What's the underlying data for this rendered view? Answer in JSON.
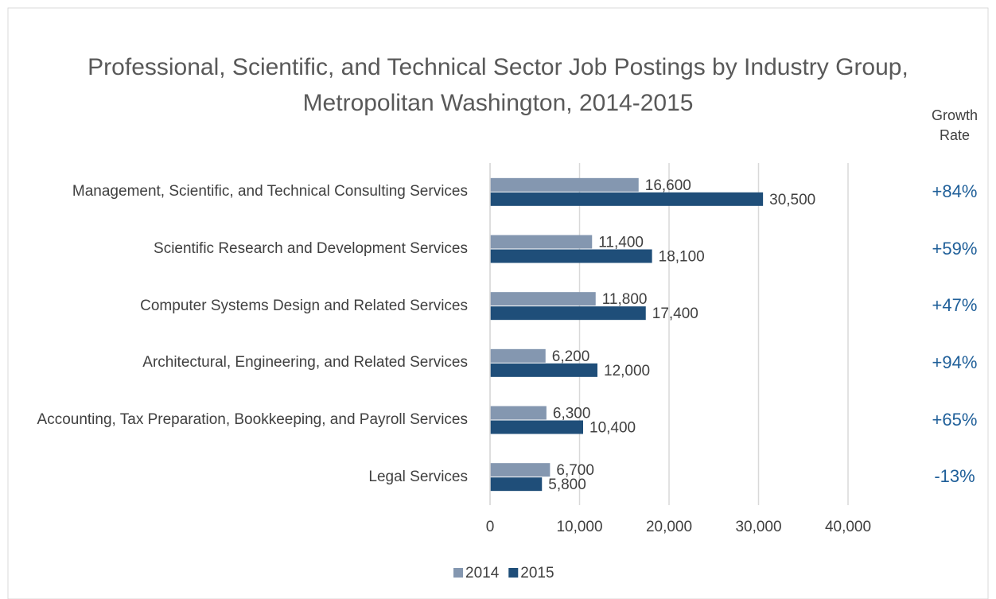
{
  "chart_data": {
    "type": "hbar",
    "title": "Professional, Scientific, and Technical Sector Job Postings by Industry Group, Metropolitan Washington, 2014-2015",
    "categories": [
      "Management, Scientific, and Technical Consulting Services",
      "Scientific Research and Development Services",
      "Computer Systems Design and Related Services",
      "Architectural, Engineering, and Related Services",
      "Accounting, Tax Preparation, Bookkeeping, and Payroll Services",
      "Legal Services"
    ],
    "series": [
      {
        "name": "2014",
        "color": "#8497b0",
        "values": [
          16600,
          11400,
          11800,
          6200,
          6300,
          6700
        ],
        "value_labels": [
          "16,600",
          "11,400",
          "11,800",
          "6,200",
          "6,300",
          "6,700"
        ]
      },
      {
        "name": "2015",
        "color": "#1f4e79",
        "values": [
          30500,
          18100,
          17400,
          12000,
          10400,
          5800
        ],
        "value_labels": [
          "30,500",
          "18,100",
          "17,400",
          "12,000",
          "10,400",
          "5,800"
        ]
      }
    ],
    "xlim": [
      0,
      40000
    ],
    "xticks": [
      0,
      {
        "value": 10000,
        "label": "10,000"
      },
      {
        "value": 20000,
        "label": "20,000"
      },
      {
        "value": 30000,
        "label": "30,000"
      },
      {
        "value": 40000,
        "label": "40,000"
      }
    ],
    "grid": true,
    "legend": "bottom",
    "growth_rate": {
      "title": "Growth Rate",
      "color": "#1f5f99",
      "labels": [
        "+84%",
        "+59%",
        "+47%",
        "+94%",
        "+65%",
        "-13%"
      ]
    }
  }
}
